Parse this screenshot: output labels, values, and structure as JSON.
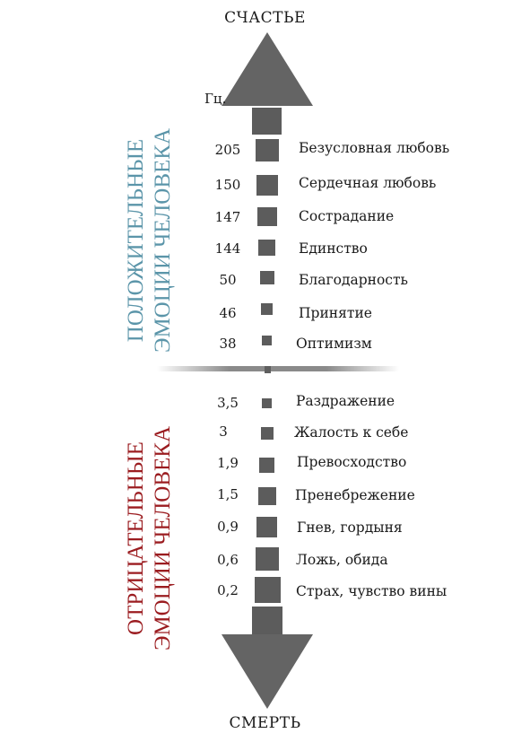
{
  "top_label": "СЧАСТЬЕ",
  "bottom_label": "СМЕРТЬ",
  "unit_label": "Гц.",
  "positive_title": [
    "ПОЛОЖИТЕЛЬНЫЕ",
    "ЭМОЦИИ ЧЕЛОВЕКА"
  ],
  "negative_title": [
    "ОТРИЦАТЕЛЬНЫЕ",
    "ЭМОЦИИ ЧЕЛОВЕКА"
  ],
  "positive_emotions": [
    {
      "value": "205",
      "label": "Безусловная любовь"
    },
    {
      "value": "150",
      "label": "Сердечная любовь"
    },
    {
      "value": "147",
      "label": "Сострадание"
    },
    {
      "value": "144",
      "label": "Единство"
    },
    {
      "value": "50",
      "label": "Благодарность"
    },
    {
      "value": "46",
      "label": "Принятие"
    },
    {
      "value": "38",
      "label": "Оптимизм"
    }
  ],
  "negative_emotions": [
    {
      "value": "3,5",
      "label": "Раздражение"
    },
    {
      "value": "3",
      "label": "Жалость к себе"
    },
    {
      "value": "1,9",
      "label": "Превосходство"
    },
    {
      "value": "1,5",
      "label": "Пренебрежение"
    },
    {
      "value": "0,9",
      "label": "Гнев, гордыня"
    },
    {
      "value": "0,6",
      "label": "Ложь, обида"
    },
    {
      "value": "0,2",
      "label": "Страх, чувство вины"
    }
  ],
  "colors": {
    "positive": "#5b95a9",
    "negative": "#9b1c20",
    "arrow": "#646464"
  }
}
